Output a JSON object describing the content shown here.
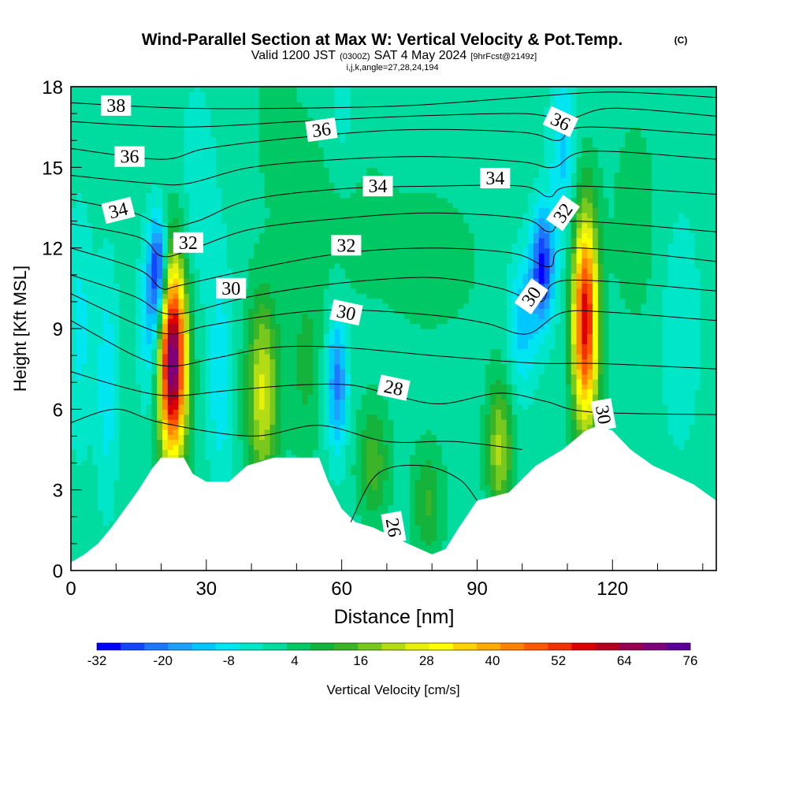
{
  "header": {
    "title": "Wind-Parallel Section at Max W: Vertical Velocity & Pot.Temp.",
    "copyright": "(C)",
    "valid_pre": "Valid 1200 JST",
    "valid_z": "(0300Z)",
    "valid_post": "SAT 4 May 2024",
    "fcst": "[9hrFcst@2149z]",
    "params": "i,j,k,angle=27,28,24,194"
  },
  "colors": {
    "terrain": "#ffffff",
    "frame": "#000000",
    "contour": "#000000",
    "palette": [
      "#0000ff",
      "#1446ff",
      "#1e78ff",
      "#1ea0ff",
      "#00c8ff",
      "#00e6f0",
      "#00e6c8",
      "#00dca0",
      "#00c864",
      "#14b43c",
      "#3cb428",
      "#78c81e",
      "#b4dc14",
      "#e6f00a",
      "#ffff00",
      "#ffd200",
      "#ffaa00",
      "#ff8200",
      "#ff5a00",
      "#f03200",
      "#dc0000",
      "#b4001e",
      "#960050",
      "#7d0078",
      "#5a0096"
    ]
  },
  "chart_data": {
    "type": "heatmap",
    "xlabel": "Distance [nm]",
    "ylabel": "Height [Kft MSL]",
    "xlim": [
      0,
      143
    ],
    "ylim": [
      0,
      18
    ],
    "xticks": [
      0,
      30,
      60,
      90,
      120
    ],
    "yticks": [
      0,
      3,
      6,
      9,
      12,
      15,
      18
    ],
    "xminor_step": 10,
    "yminor_step": 1,
    "colorbar": {
      "label": "Vertical Velocity [cm/s]",
      "min": -32,
      "max": 76,
      "step": 4.5,
      "tick_labels": [
        "-32",
        "-20",
        "-8",
        "4",
        "16",
        "28",
        "40",
        "52",
        "64",
        "76"
      ]
    },
    "terrain_kft": [
      [
        0,
        0.3
      ],
      [
        3,
        0.6
      ],
      [
        6,
        1.0
      ],
      [
        9,
        1.6
      ],
      [
        12,
        2.3
      ],
      [
        15,
        3.0
      ],
      [
        18,
        3.8
      ],
      [
        20,
        4.2
      ],
      [
        25,
        4.2
      ],
      [
        27,
        3.6
      ],
      [
        30,
        3.3
      ],
      [
        35,
        3.3
      ],
      [
        39,
        3.9
      ],
      [
        45,
        4.2
      ],
      [
        55,
        4.2
      ],
      [
        57,
        3.3
      ],
      [
        60,
        2.3
      ],
      [
        63,
        1.8
      ],
      [
        67,
        1.6
      ],
      [
        72,
        1.2
      ],
      [
        76,
        0.9
      ],
      [
        80,
        0.6
      ],
      [
        83,
        0.8
      ],
      [
        86,
        1.6
      ],
      [
        90,
        2.6
      ],
      [
        97,
        2.9
      ],
      [
        103,
        3.9
      ],
      [
        109,
        4.5
      ],
      [
        114,
        5.2
      ],
      [
        117,
        5.4
      ],
      [
        120,
        5.2
      ],
      [
        124,
        4.5
      ],
      [
        129,
        3.9
      ],
      [
        133,
        3.6
      ],
      [
        138,
        3.2
      ],
      [
        143,
        2.6
      ]
    ],
    "w_features": [
      {
        "x": 22.5,
        "z": 7.8,
        "peak": 76,
        "sx": 2.2,
        "sz": 2.6
      },
      {
        "x": 19.5,
        "z": 11.2,
        "peak": -30,
        "sx": 1.4,
        "sz": 1.4
      },
      {
        "x": 18,
        "z": 9.2,
        "peak": -16,
        "sx": 1.8,
        "sz": 2.2
      },
      {
        "x": 8,
        "z": 7.0,
        "peak": -10,
        "sx": 1.6,
        "sz": 3.0
      },
      {
        "x": 42.5,
        "z": 6.6,
        "peak": 26,
        "sx": 2.5,
        "sz": 2.5
      },
      {
        "x": 33,
        "z": 7.2,
        "peak": -10,
        "sx": 1.8,
        "sz": 3.0
      },
      {
        "x": 59,
        "z": 7.0,
        "peak": -22,
        "sx": 1.6,
        "sz": 1.8
      },
      {
        "x": 52,
        "z": 7.5,
        "peak": 8,
        "sx": 2.5,
        "sz": 2.5
      },
      {
        "x": 67,
        "z": 4.0,
        "peak": 14,
        "sx": 2.5,
        "sz": 1.5
      },
      {
        "x": 79,
        "z": 2.5,
        "peak": 12,
        "sx": 2.5,
        "sz": 1.5
      },
      {
        "x": 95,
        "z": 4.5,
        "peak": 22,
        "sx": 2.0,
        "sz": 1.8
      },
      {
        "x": 104.5,
        "z": 11.3,
        "peak": -30,
        "sx": 1.8,
        "sz": 1.5
      },
      {
        "x": 100,
        "z": 9.3,
        "peak": -14,
        "sx": 2.2,
        "sz": 1.8
      },
      {
        "x": 109,
        "z": 15.5,
        "peak": -12,
        "sx": 2.0,
        "sz": 2.5
      },
      {
        "x": 114,
        "z": 9.3,
        "peak": 60,
        "sx": 2.0,
        "sz": 2.8
      },
      {
        "x": 57,
        "z": 14.0,
        "peak": 5,
        "sx": 8.0,
        "sz": 3.0
      },
      {
        "x": 80,
        "z": 11.5,
        "peak": 4,
        "sx": 10.0,
        "sz": 2.5
      },
      {
        "x": 45,
        "z": 17.0,
        "peak": 4,
        "sx": 3.0,
        "sz": 2.0
      },
      {
        "x": 60,
        "z": 16.5,
        "peak": -6,
        "sx": 3.0,
        "sz": 2.0
      },
      {
        "x": 125,
        "z": 13.0,
        "peak": 5,
        "sx": 4.0,
        "sz": 3.0
      },
      {
        "x": 135,
        "z": 9.0,
        "peak": -6,
        "sx": 3.0,
        "sz": 3.0
      },
      {
        "x": 2,
        "z": 9.0,
        "peak": -8,
        "sx": 2.0,
        "sz": 3.0
      },
      {
        "x": 28,
        "z": 14.0,
        "peak": -5,
        "sx": 3.0,
        "sz": 3.0
      }
    ],
    "theta_contours": [
      {
        "value": 38,
        "points": [
          [
            0,
            17.4
          ],
          [
            25,
            17.2
          ],
          [
            50,
            17.2
          ],
          [
            75,
            17.3
          ],
          [
            100,
            17.6
          ],
          [
            120,
            17.8
          ],
          [
            143,
            17.6
          ]
        ]
      },
      {
        "value": 37,
        "points": [
          [
            0,
            16.7
          ],
          [
            25,
            16.5
          ],
          [
            50,
            16.7
          ],
          [
            75,
            16.9
          ],
          [
            100,
            17.0
          ],
          [
            110,
            16.8
          ],
          [
            120,
            17.2
          ],
          [
            143,
            16.9
          ]
        ]
      },
      {
        "value": 36,
        "points": [
          [
            0,
            15.7
          ],
          [
            20,
            15.3
          ],
          [
            30,
            15.7
          ],
          [
            50,
            16.1
          ],
          [
            75,
            16.4
          ],
          [
            100,
            16.3
          ],
          [
            108,
            16.0
          ],
          [
            114,
            16.5
          ],
          [
            143,
            16.2
          ]
        ]
      },
      {
        "value": 35,
        "points": [
          [
            0,
            14.7
          ],
          [
            18,
            14.4
          ],
          [
            26,
            14.4
          ],
          [
            40,
            15.0
          ],
          [
            60,
            15.3
          ],
          [
            80,
            15.4
          ],
          [
            100,
            15.2
          ],
          [
            107,
            15.0
          ],
          [
            115,
            15.6
          ],
          [
            143,
            15.3
          ]
        ]
      },
      {
        "value": 34,
        "points": [
          [
            0,
            13.8
          ],
          [
            14,
            13.3
          ],
          [
            21,
            12.8
          ],
          [
            28,
            13.0
          ],
          [
            40,
            13.8
          ],
          [
            60,
            14.2
          ],
          [
            80,
            14.3
          ],
          [
            100,
            14.3
          ],
          [
            106,
            13.9
          ],
          [
            112,
            14.3
          ],
          [
            143,
            14.0
          ]
        ]
      },
      {
        "value": 33,
        "points": [
          [
            0,
            12.9
          ],
          [
            15,
            12.4
          ],
          [
            20,
            11.7
          ],
          [
            26,
            11.9
          ],
          [
            40,
            12.7
          ],
          [
            60,
            13.1
          ],
          [
            80,
            13.3
          ],
          [
            100,
            13.1
          ],
          [
            106,
            12.6
          ],
          [
            112,
            13.0
          ],
          [
            143,
            12.6
          ]
        ]
      },
      {
        "value": 32,
        "points": [
          [
            0,
            12.0
          ],
          [
            15,
            11.2
          ],
          [
            20,
            10.5
          ],
          [
            24,
            10.6
          ],
          [
            40,
            11.2
          ],
          [
            60,
            11.8
          ],
          [
            80,
            12.0
          ],
          [
            98,
            11.8
          ],
          [
            106,
            11.3
          ],
          [
            111,
            12.0
          ],
          [
            143,
            11.5
          ]
        ]
      },
      {
        "value": 31,
        "points": [
          [
            0,
            11.0
          ],
          [
            14,
            10.2
          ],
          [
            20,
            9.6
          ],
          [
            26,
            9.6
          ],
          [
            40,
            10.2
          ],
          [
            60,
            10.7
          ],
          [
            80,
            10.9
          ],
          [
            95,
            10.5
          ],
          [
            104,
            10.0
          ],
          [
            110,
            10.8
          ],
          [
            143,
            10.4
          ]
        ]
      },
      {
        "value": 30,
        "points": [
          [
            0,
            10.3
          ],
          [
            14,
            9.2
          ],
          [
            22,
            8.8
          ],
          [
            30,
            9.1
          ],
          [
            45,
            9.5
          ],
          [
            60,
            9.7
          ],
          [
            80,
            9.5
          ],
          [
            92,
            9.2
          ],
          [
            101,
            8.8
          ],
          [
            109,
            9.6
          ],
          [
            120,
            9.6
          ],
          [
            143,
            9.3
          ]
        ]
      },
      {
        "value": 29,
        "points": [
          [
            0,
            9.3
          ],
          [
            14,
            8.0
          ],
          [
            22,
            7.6
          ],
          [
            32,
            7.9
          ],
          [
            45,
            8.3
          ],
          [
            60,
            8.3
          ],
          [
            80,
            8.0
          ],
          [
            95,
            7.8
          ],
          [
            105,
            7.7
          ],
          [
            117,
            7.7
          ],
          [
            143,
            7.5
          ]
        ]
      },
      {
        "value": 28,
        "points": [
          [
            0,
            7.4
          ],
          [
            12,
            6.8
          ],
          [
            22,
            6.5
          ],
          [
            35,
            6.7
          ],
          [
            50,
            6.9
          ],
          [
            62,
            6.9
          ],
          [
            72,
            6.5
          ],
          [
            82,
            6.2
          ],
          [
            95,
            6.6
          ],
          [
            105,
            6.3
          ],
          [
            115,
            5.9
          ],
          [
            143,
            5.8
          ]
        ]
      },
      {
        "value": 27,
        "points": [
          [
            0,
            5.5
          ],
          [
            10,
            6.0
          ],
          [
            20,
            5.5
          ],
          [
            40,
            5.0
          ],
          [
            55,
            5.4
          ],
          [
            70,
            4.8
          ],
          [
            85,
            4.8
          ],
          [
            100,
            4.5
          ]
        ]
      },
      {
        "value": 26,
        "points": [
          [
            62,
            1.8
          ],
          [
            68,
            3.6
          ],
          [
            78,
            3.9
          ],
          [
            86,
            3.4
          ],
          [
            90,
            2.6
          ]
        ]
      }
    ],
    "annotations": [
      {
        "text": "38",
        "x": 10,
        "z": 17.3,
        "rot": 0
      },
      {
        "text": "36",
        "x": 13,
        "z": 15.4,
        "rot": 0
      },
      {
        "text": "34",
        "x": 10.5,
        "z": 13.4,
        "rot": -14
      },
      {
        "text": "32",
        "x": 26,
        "z": 12.2,
        "rot": 0
      },
      {
        "text": "30",
        "x": 35.5,
        "z": 10.5,
        "rot": 0
      },
      {
        "text": "36",
        "x": 55.5,
        "z": 16.4,
        "rot": -8
      },
      {
        "text": "34",
        "x": 68,
        "z": 14.3,
        "rot": 0
      },
      {
        "text": "32",
        "x": 61,
        "z": 12.1,
        "rot": 0
      },
      {
        "text": "30",
        "x": 61,
        "z": 9.6,
        "rot": 12
      },
      {
        "text": "28",
        "x": 71.5,
        "z": 6.8,
        "rot": 12
      },
      {
        "text": "34",
        "x": 94,
        "z": 14.6,
        "rot": 0
      },
      {
        "text": "36",
        "x": 108.5,
        "z": 16.7,
        "rot": 25
      },
      {
        "text": "32",
        "x": 109,
        "z": 13.3,
        "rot": -55
      },
      {
        "text": "30",
        "x": 102,
        "z": 10.2,
        "rot": -55
      },
      {
        "text": "30",
        "x": 118,
        "z": 5.8,
        "rot": 80
      },
      {
        "text": "26",
        "x": 71.5,
        "z": 1.6,
        "rot": 80
      }
    ]
  }
}
